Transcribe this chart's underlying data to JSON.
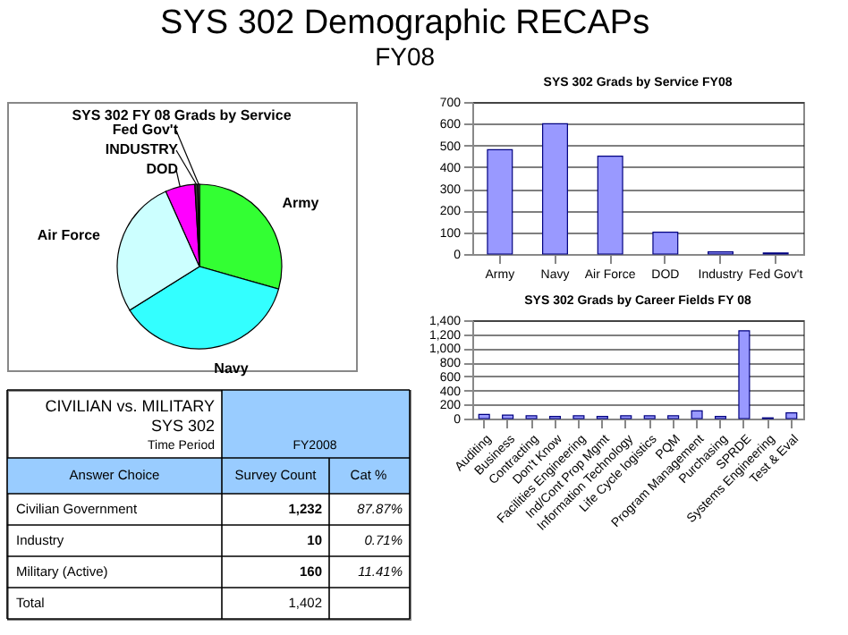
{
  "chart_data": [
    {
      "type": "other",
      "title": "SYS 302 Demographic RECAPs",
      "subtitle": "FY08"
    },
    {
      "type": "pie",
      "title": "SYS 302  FY 08 Grads by Service",
      "categories": [
        "Army",
        "Navy",
        "Air Force",
        "DOD",
        "INDUSTRY",
        "Fed Gov't"
      ],
      "values": [
        29.4,
        36.7,
        27.2,
        5.8,
        0.6,
        0.3
      ],
      "colors": [
        "#33ff33",
        "#33ffff",
        "#ccffff",
        "#ff00ff",
        "#333333",
        "#999999"
      ]
    },
    {
      "type": "other",
      "annotations": [
        "CIVILIAN vs. MILITARY",
        "SYS 302",
        "Time Period",
        "FY2008",
        "Answer Choice",
        "Survey Count",
        "Cat %",
        "Civilian Government",
        "1,232",
        "87.87%",
        "Industry",
        "10",
        "0.71%",
        "Military (Active)",
        "160",
        "11.41%",
        "Total",
        "1,402"
      ]
    },
    {
      "type": "bar",
      "title": "SYS 302 Grads by Service FY08",
      "categories": [
        "Army",
        "Navy",
        "Air Force",
        "DOD",
        "Industry",
        "Fed Gov't"
      ],
      "values": [
        480,
        600,
        450,
        100,
        10,
        5
      ],
      "color": "#9999ff",
      "ylim": [
        0,
        700
      ],
      "yticks": [
        0,
        100,
        200,
        300,
        400,
        500,
        600,
        700
      ],
      "grid": "y"
    },
    {
      "type": "bar",
      "title": "SYS 302 Grads by Career Fields FY 08",
      "categories": [
        "Auditing",
        "Business",
        "Contracting",
        "Don't Know",
        "Facilities Engineering",
        "Ind/Cont Prop Mgmt",
        "Information Technology",
        "Life Cycle logistics",
        "PQM",
        "Program Management",
        "Purchasing",
        "SPRDE",
        "Systems Engineering",
        "Test & Eval"
      ],
      "values": [
        60,
        50,
        40,
        30,
        40,
        30,
        40,
        40,
        40,
        110,
        30,
        1250,
        10,
        80
      ],
      "color": "#9999ff",
      "ylim": [
        0,
        1400
      ],
      "yticks": [
        0,
        200,
        400,
        600,
        800,
        {
          "value": 1000,
          "label": "1,000"
        },
        {
          "value": 1200,
          "label": "1,200"
        },
        {
          "value": 1400,
          "label": "1,400"
        }
      ],
      "grid": "y"
    }
  ]
}
